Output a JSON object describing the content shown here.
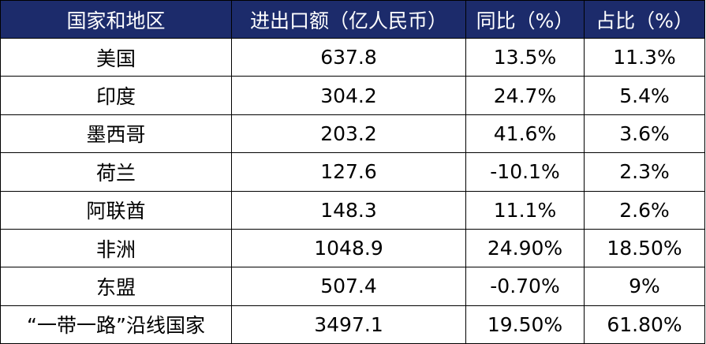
{
  "table": {
    "header": [
      "国家和地区",
      "进出口额（亿人民币）",
      "同比（%）",
      "占比（%）"
    ],
    "rows": [
      [
        "美国",
        "637.8",
        "13.5%",
        "11.3%"
      ],
      [
        "印度",
        "304.2",
        "24.7%",
        "5.4%"
      ],
      [
        "墨西哥",
        "203.2",
        "41.6%",
        "3.6%"
      ],
      [
        "荷兰",
        "127.6",
        "-10.1%",
        "2.3%"
      ],
      [
        "阿联酋",
        "148.3",
        "11.1%",
        "2.6%"
      ],
      [
        "非洲",
        "1048.9",
        "24.90%",
        "18.50%"
      ],
      [
        "东盟",
        "507.4",
        "-0.70%",
        "9%"
      ],
      [
        "“一带一路”沿线国家",
        "3497.1",
        "19.50%",
        "61.80%"
      ]
    ]
  }
}
